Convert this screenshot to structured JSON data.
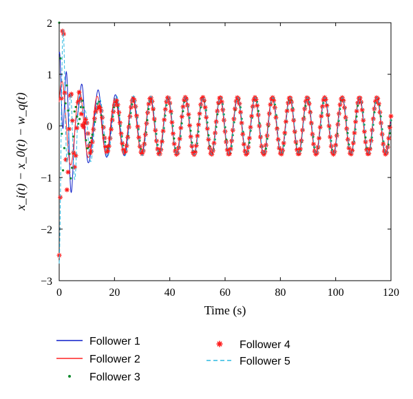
{
  "chart_data": {
    "type": "line",
    "xlabel": "Time (s)",
    "ylabel": "x_i(t) − x_0(t) − w_q(t)",
    "xlim": [
      0,
      120
    ],
    "ylim": [
      -3,
      2
    ],
    "x_ticks": [
      0,
      20,
      40,
      60,
      80,
      100,
      120
    ],
    "y_ticks": [
      -3,
      -2,
      -1,
      0,
      1,
      2
    ],
    "grid": false,
    "legend_position": "bottom",
    "signal_model": {
      "description": "damped oscillation converging to a steady sinusoid",
      "steady_amplitude": 0.55,
      "period_s": 6.3,
      "initial_values": {
        "Follower 1": 1.4,
        "Follower 2": 0.0,
        "Follower 3": 1.8,
        "Follower 4": -2.6,
        "Follower 5": -2.3
      },
      "transient_decay_time_s": 12
    },
    "series": [
      {
        "name": "Follower 1",
        "style": "solid line",
        "color": "#0b1cc8"
      },
      {
        "name": "Follower 2",
        "style": "solid line",
        "color": "#ff2020"
      },
      {
        "name": "Follower 3",
        "style": "dots",
        "color": "#0f8a2e"
      },
      {
        "name": "Follower 4",
        "style": "asterisk markers",
        "color": "#ff1a1a"
      },
      {
        "name": "Follower 5",
        "style": "dashed line",
        "color": "#2ab8e0"
      }
    ]
  }
}
